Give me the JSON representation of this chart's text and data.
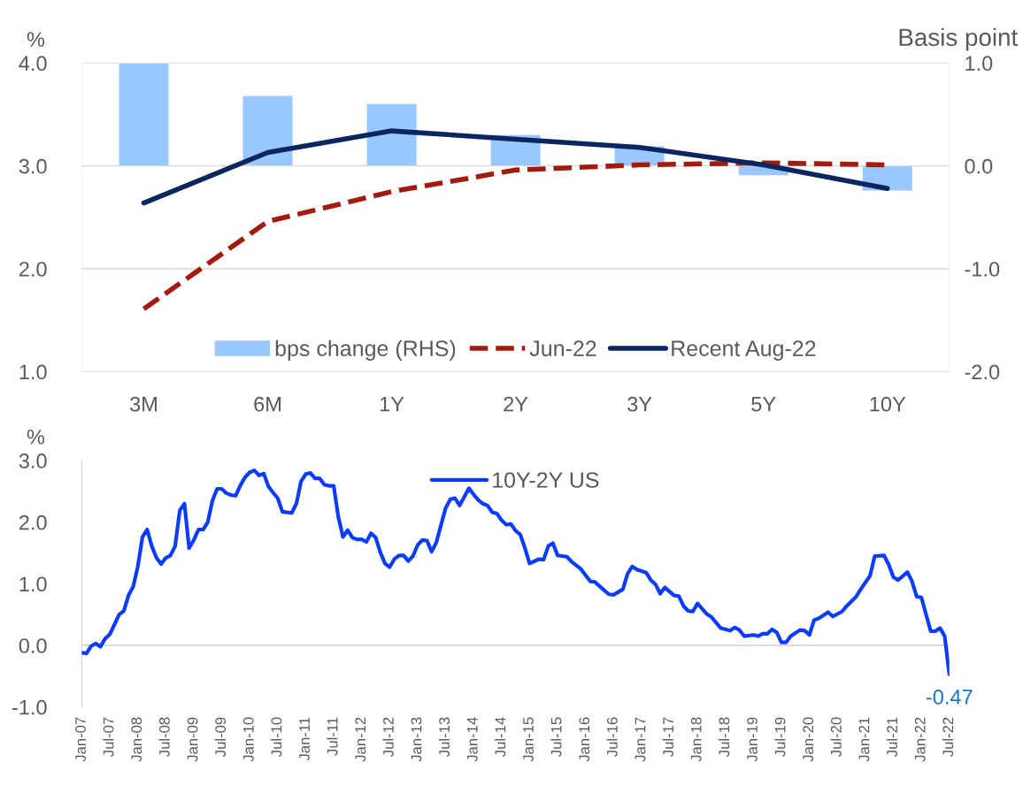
{
  "chart_data": [
    {
      "type": "bar",
      "ylabel": "%",
      "y2label": "Basis point",
      "categories": [
        "3M",
        "6M",
        "1Y",
        "2Y",
        "3Y",
        "5Y",
        "10Y"
      ],
      "series": [
        {
          "name": "bps change (RHS)",
          "type": "bar",
          "axis": "y2",
          "color": "#99c7ff",
          "values": [
            1.0,
            0.68,
            0.6,
            0.3,
            0.19,
            -0.09,
            -0.24
          ]
        },
        {
          "name": "Jun-22",
          "type": "line",
          "line_style": "dashed",
          "color": "#a31a0e",
          "values": [
            1.61,
            2.46,
            2.75,
            2.96,
            3.01,
            3.03,
            3.01
          ]
        },
        {
          "name": "Recent Aug-22",
          "type": "line",
          "line_style": "solid",
          "color": "#0b2560",
          "values": [
            2.64,
            3.13,
            3.34,
            3.26,
            3.18,
            3.01,
            2.78
          ]
        }
      ],
      "ylim": [
        1,
        4
      ],
      "yticks": [
        {
          "value": 1,
          "label": "1.0"
        },
        {
          "value": 2,
          "label": "2.0"
        },
        {
          "value": 3,
          "label": "3.0"
        },
        {
          "value": 4,
          "label": "4.0"
        }
      ],
      "y2lim": [
        -2,
        1
      ],
      "y2ticks": [
        {
          "value": -2,
          "label": "-2.0"
        },
        {
          "value": -1,
          "label": "-1.0"
        },
        {
          "value": 0,
          "label": "0.0"
        },
        {
          "value": 1,
          "label": "1.0"
        }
      ],
      "grid": "y",
      "legend": "bottom"
    },
    {
      "type": "line",
      "ylabel": "%",
      "series": [
        {
          "name": "10Y-2Y US",
          "color": "#0a3cff",
          "x": [
            "2007-01",
            "2007-02",
            "2007-03",
            "2007-04",
            "2007-05",
            "2007-06",
            "2007-07",
            "2007-09",
            "2007-10",
            "2007-11",
            "2007-12",
            "2008-01",
            "2008-02",
            "2008-03",
            "2008-04",
            "2008-05",
            "2008-06",
            "2008-07",
            "2008-08",
            "2008-09",
            "2008-10",
            "2008-11",
            "2008-12",
            "2009-01",
            "2009-02",
            "2009-03",
            "2009-04",
            "2009-05",
            "2009-06",
            "2009-07",
            "2009-08",
            "2009-09",
            "2009-10",
            "2009-11",
            "2009-12",
            "2010-01",
            "2010-02",
            "2010-03",
            "2010-04",
            "2010-05",
            "2010-06",
            "2010-07",
            "2010-08",
            "2010-10",
            "2010-11",
            "2010-12",
            "2011-01",
            "2011-02",
            "2011-03",
            "2011-04",
            "2011-05",
            "2011-06",
            "2011-07",
            "2011-08",
            "2011-09",
            "2011-10",
            "2011-11",
            "2011-12",
            "2012-01",
            "2012-02",
            "2012-03",
            "2012-04",
            "2012-05",
            "2012-06",
            "2012-07",
            "2012-08",
            "2012-09",
            "2012-10",
            "2012-11",
            "2012-12",
            "2013-01",
            "2013-02",
            "2013-03",
            "2013-04",
            "2013-05",
            "2013-06",
            "2013-07",
            "2013-08",
            "2013-09",
            "2013-10",
            "2013-11",
            "2013-12",
            "2014-01",
            "2014-02",
            "2014-03",
            "2014-04",
            "2014-05",
            "2014-06",
            "2014-07",
            "2014-08",
            "2014-09",
            "2014-10",
            "2014-11",
            "2014-12",
            "2015-01",
            "2015-03",
            "2015-04",
            "2015-05",
            "2015-06",
            "2015-07",
            "2015-09",
            "2015-10",
            "2015-12",
            "2016-02",
            "2016-03",
            "2016-04",
            "2016-06",
            "2016-07",
            "2016-09",
            "2016-10",
            "2016-11",
            "2016-12",
            "2017-02",
            "2017-03",
            "2017-04",
            "2017-05",
            "2017-06",
            "2017-08",
            "2017-09",
            "2017-10",
            "2017-11",
            "2017-12",
            "2018-01",
            "2018-03",
            "2018-04",
            "2018-06",
            "2018-08",
            "2018-09",
            "2018-10",
            "2018-11",
            "2019-01",
            "2019-02",
            "2019-03",
            "2019-04",
            "2019-05",
            "2019-06",
            "2019-07",
            "2019-08",
            "2019-09",
            "2019-11",
            "2019-12",
            "2020-01",
            "2020-02",
            "2020-03",
            "2020-05",
            "2020-06",
            "2020-08",
            "2020-09",
            "2020-11",
            "2020-12",
            "2021-02",
            "2021-03",
            "2021-05",
            "2021-06",
            "2021-07",
            "2021-08",
            "2021-10",
            "2021-11",
            "2021-12",
            "2022-01",
            "2022-03",
            "2022-04",
            "2022-05",
            "2022-06",
            "2022-07"
          ],
          "values": [
            -0.12,
            -0.13,
            -0.01,
            0.03,
            -0.02,
            0.11,
            0.18,
            0.5,
            0.56,
            0.81,
            0.95,
            1.28,
            1.76,
            1.88,
            1.61,
            1.42,
            1.32,
            1.42,
            1.46,
            1.61,
            2.19,
            2.3,
            1.58,
            1.71,
            1.88,
            1.88,
            2.0,
            2.35,
            2.54,
            2.54,
            2.47,
            2.44,
            2.43,
            2.6,
            2.73,
            2.81,
            2.84,
            2.76,
            2.79,
            2.58,
            2.48,
            2.39,
            2.17,
            2.15,
            2.3,
            2.66,
            2.78,
            2.8,
            2.71,
            2.71,
            2.61,
            2.59,
            2.59,
            2.08,
            1.76,
            1.87,
            1.75,
            1.72,
            1.72,
            1.68,
            1.82,
            1.75,
            1.51,
            1.33,
            1.27,
            1.4,
            1.46,
            1.46,
            1.37,
            1.45,
            1.63,
            1.71,
            1.7,
            1.52,
            1.67,
            1.95,
            2.23,
            2.37,
            2.39,
            2.27,
            2.41,
            2.55,
            2.45,
            2.36,
            2.3,
            2.27,
            2.16,
            2.14,
            2.03,
            1.96,
            1.97,
            1.86,
            1.8,
            1.58,
            1.33,
            1.4,
            1.39,
            1.61,
            1.66,
            1.46,
            1.44,
            1.36,
            1.24,
            1.04,
            1.03,
            0.96,
            0.83,
            0.82,
            0.91,
            1.16,
            1.28,
            1.23,
            1.18,
            1.06,
            0.99,
            0.84,
            0.94,
            0.81,
            0.8,
            0.64,
            0.56,
            0.55,
            0.68,
            0.51,
            0.46,
            0.28,
            0.24,
            0.29,
            0.25,
            0.15,
            0.17,
            0.15,
            0.19,
            0.19,
            0.26,
            0.21,
            0.05,
            0.05,
            0.15,
            0.25,
            0.24,
            0.17,
            0.41,
            0.44,
            0.54,
            0.47,
            0.55,
            0.64,
            0.79,
            0.91,
            1.13,
            1.45,
            1.46,
            1.31,
            1.11,
            1.06,
            1.19,
            1.04,
            0.79,
            0.78,
            0.23,
            0.23,
            0.28,
            0.15,
            -0.47
          ]
        }
      ],
      "annotations": [
        {
          "text": "-0.47",
          "x": "2022-07",
          "y": -0.47
        }
      ],
      "xlim": [
        "2007-01",
        "2022-07"
      ],
      "xticks": [
        {
          "value": "2007-01",
          "label": "Jan-07"
        },
        {
          "value": "2007-07",
          "label": "Jul-07"
        },
        {
          "value": "2008-01",
          "label": "Jan-08"
        },
        {
          "value": "2008-07",
          "label": "Jul-08"
        },
        {
          "value": "2009-01",
          "label": "Jan-09"
        },
        {
          "value": "2009-07",
          "label": "Jul-09"
        },
        {
          "value": "2010-01",
          "label": "Jan-10"
        },
        {
          "value": "2010-07",
          "label": "Jul-10"
        },
        {
          "value": "2011-01",
          "label": "Jan-11"
        },
        {
          "value": "2011-07",
          "label": "Jul-11"
        },
        {
          "value": "2012-01",
          "label": "Jan-12"
        },
        {
          "value": "2012-07",
          "label": "Jul-12"
        },
        {
          "value": "2013-01",
          "label": "Jan-13"
        },
        {
          "value": "2013-07",
          "label": "Jul-13"
        },
        {
          "value": "2014-01",
          "label": "Jan-14"
        },
        {
          "value": "2014-07",
          "label": "Jul-14"
        },
        {
          "value": "2015-01",
          "label": "Jan-15"
        },
        {
          "value": "2015-07",
          "label": "Jul-15"
        },
        {
          "value": "2016-01",
          "label": "Jan-16"
        },
        {
          "value": "2016-07",
          "label": "Jul-16"
        },
        {
          "value": "2017-01",
          "label": "Jan-17"
        },
        {
          "value": "2017-07",
          "label": "Jul-17"
        },
        {
          "value": "2018-01",
          "label": "Jan-18"
        },
        {
          "value": "2018-07",
          "label": "Jul-18"
        },
        {
          "value": "2019-01",
          "label": "Jan-19"
        },
        {
          "value": "2019-07",
          "label": "Jul-19"
        },
        {
          "value": "2020-01",
          "label": "Jan-20"
        },
        {
          "value": "2020-07",
          "label": "Jul-20"
        },
        {
          "value": "2021-01",
          "label": "Jan-21"
        },
        {
          "value": "2021-07",
          "label": "Jul-21"
        },
        {
          "value": "2022-01",
          "label": "Jan-22"
        },
        {
          "value": "2022-07",
          "label": "Jul-22"
        }
      ],
      "ylim": [
        -1,
        3
      ],
      "yticks": [
        {
          "value": -1,
          "label": "-1.0"
        },
        {
          "value": 0,
          "label": "0.0"
        },
        {
          "value": 1,
          "label": "1.0"
        },
        {
          "value": 2,
          "label": "2.0"
        },
        {
          "value": 3,
          "label": "3.0"
        }
      ],
      "ref_lines": [
        {
          "axis": "y",
          "value": 0,
          "color": "#d9d9d9"
        }
      ],
      "legend": "top"
    }
  ]
}
